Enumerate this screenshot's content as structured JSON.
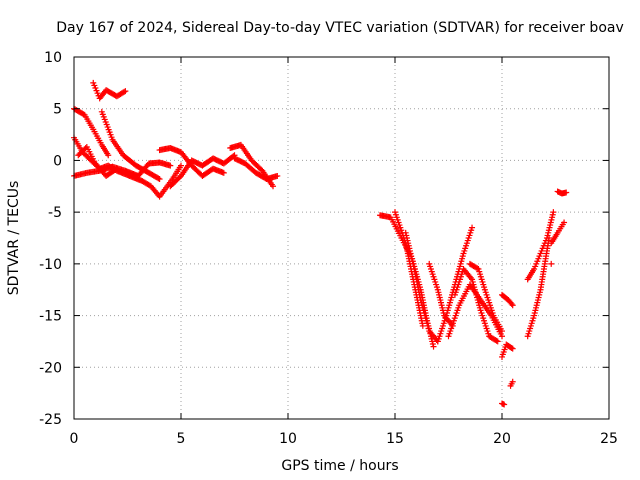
{
  "chart_data": {
    "type": "scatter",
    "title": "Day 167 of 2024, Sidereal Day-to-day VTEC variation (SDTVAR) for receiver boav",
    "xlabel": "GPS time / hours",
    "ylabel": "SDTVAR / TECUs",
    "xlim": [
      0,
      25
    ],
    "ylim": [
      -25,
      10
    ],
    "xticks": [
      0,
      5,
      10,
      15,
      20,
      25
    ],
    "yticks": [
      -25,
      -20,
      -15,
      -10,
      -5,
      0,
      5,
      10
    ],
    "grid": true,
    "marker": "+",
    "colors": {
      "points": "#ff0000",
      "axis": "#000000",
      "grid": "#a0a0a0"
    },
    "series": [
      {
        "name": "SDTVAR",
        "segments": [
          {
            "x": [
              0.0,
              0.5,
              0.9,
              1.3,
              1.6
            ],
            "y": [
              5.0,
              4.4,
              3.0,
              1.5,
              0.5
            ]
          },
          {
            "x": [
              0.9,
              1.2,
              1.5,
              2.0,
              2.4
            ],
            "y": [
              7.5,
              6.0,
              6.8,
              6.2,
              6.7
            ]
          },
          {
            "x": [
              0.0,
              0.4,
              0.8,
              1.2,
              1.6,
              2.0,
              2.6,
              3.2,
              3.6,
              4.0,
              4.6,
              5.0
            ],
            "y": [
              2.2,
              0.8,
              0.0,
              -0.8,
              -0.5,
              -1.0,
              -1.5,
              -2.0,
              -2.5,
              -3.5,
              -1.8,
              -0.5
            ]
          },
          {
            "x": [
              0.0,
              0.6,
              1.2,
              1.8,
              2.4,
              3.0,
              3.5,
              4.0,
              4.5
            ],
            "y": [
              -1.5,
              -1.2,
              -1.0,
              -0.6,
              -1.0,
              -1.5,
              -0.3,
              -0.2,
              -0.5
            ]
          },
          {
            "x": [
              1.3,
              1.8,
              2.3,
              2.9,
              3.5,
              4.0
            ],
            "y": [
              4.7,
              2.0,
              0.5,
              -0.5,
              -1.2,
              -1.8
            ]
          },
          {
            "x": [
              0.2,
              0.6,
              1.0,
              1.5,
              2.0
            ],
            "y": [
              0.5,
              1.3,
              -0.3,
              -1.5,
              -0.8
            ]
          },
          {
            "x": [
              4.0,
              4.5,
              5.0,
              5.5,
              6.0,
              6.5,
              7.0
            ],
            "y": [
              1.0,
              1.2,
              0.8,
              -0.5,
              -1.5,
              -0.8,
              -1.2
            ]
          },
          {
            "x": [
              4.5,
              5.0,
              5.5,
              6.0,
              6.5,
              7.0,
              7.5
            ],
            "y": [
              -2.5,
              -1.5,
              0.0,
              -0.5,
              0.2,
              -0.3,
              0.5
            ]
          },
          {
            "x": [
              7.3,
              7.8,
              8.3,
              8.8,
              9.3
            ],
            "y": [
              1.2,
              1.5,
              0.0,
              -1.0,
              -2.5
            ]
          },
          {
            "x": [
              7.5,
              8.0,
              8.5,
              9.0,
              9.5
            ],
            "y": [
              0.2,
              -0.3,
              -1.2,
              -1.8,
              -1.5
            ]
          },
          {
            "x": [
              14.3,
              14.8,
              15.3,
              15.8,
              16.2,
              16.5,
              16.8
            ],
            "y": [
              -5.3,
              -5.5,
              -7.5,
              -9.5,
              -12.5,
              -15.5,
              -18.0
            ]
          },
          {
            "x": [
              15.0,
              15.5,
              15.8,
              16.0,
              16.3
            ],
            "y": [
              -5.0,
              -8.0,
              -11.0,
              -13.0,
              -16.0
            ]
          },
          {
            "x": [
              15.5,
              15.9,
              16.2,
              16.6,
              17.0
            ],
            "y": [
              -7.0,
              -10.5,
              -13.5,
              -16.5,
              -17.5
            ]
          },
          {
            "x": [
              16.6,
              17.0,
              17.3,
              17.7
            ],
            "y": [
              -10.0,
              -12.5,
              -15.0,
              -16.0
            ]
          },
          {
            "x": [
              17.0,
              17.4,
              17.8,
              18.2,
              18.6
            ],
            "y": [
              -17.5,
              -15.0,
              -12.0,
              -9.0,
              -6.5
            ]
          },
          {
            "x": [
              17.5,
              18.0,
              18.5,
              19.0,
              19.5,
              20.0
            ],
            "y": [
              -17.0,
              -14.0,
              -12.0,
              -13.5,
              -15.0,
              -17.0
            ]
          },
          {
            "x": [
              17.8,
              18.2,
              18.6,
              19.0,
              19.4,
              19.8
            ],
            "y": [
              -13.0,
              -10.5,
              -11.5,
              -14.5,
              -17.0,
              -17.5
            ]
          },
          {
            "x": [
              18.5,
              18.9,
              19.2,
              19.6,
              20.0
            ],
            "y": [
              -10.0,
              -10.5,
              -12.5,
              -15.0,
              -16.5
            ]
          },
          {
            "x": [
              20.0,
              20.3,
              20.5
            ],
            "y": [
              -13.0,
              -13.5,
              -14.0
            ]
          },
          {
            "x": [
              20.0,
              20.2,
              20.5
            ],
            "y": [
              -19.0,
              -17.8,
              -18.2
            ]
          },
          {
            "x": [
              20.0,
              20.1
            ],
            "y": [
              -23.5,
              -23.6
            ]
          },
          {
            "x": [
              20.4,
              20.5
            ],
            "y": [
              -21.8,
              -21.4
            ]
          },
          {
            "x": [
              21.2,
              21.5,
              21.8,
              22.0,
              22.2
            ],
            "y": [
              -17.0,
              -15.0,
              -12.5,
              -10.0,
              -7.5
            ]
          },
          {
            "x": [
              21.2,
              21.5,
              21.8,
              22.1,
              22.4
            ],
            "y": [
              -11.5,
              -10.5,
              -9.0,
              -7.5,
              -5.0
            ]
          },
          {
            "x": [
              22.3,
              22.6,
              22.9
            ],
            "y": [
              -8.0,
              -7.0,
              -6.0
            ]
          },
          {
            "x": [
              22.6,
              22.8,
              23.0
            ],
            "y": [
              -3.0,
              -3.2,
              -3.1
            ]
          },
          {
            "x": [
              22.3
            ],
            "y": [
              -10.0
            ]
          }
        ]
      }
    ]
  }
}
